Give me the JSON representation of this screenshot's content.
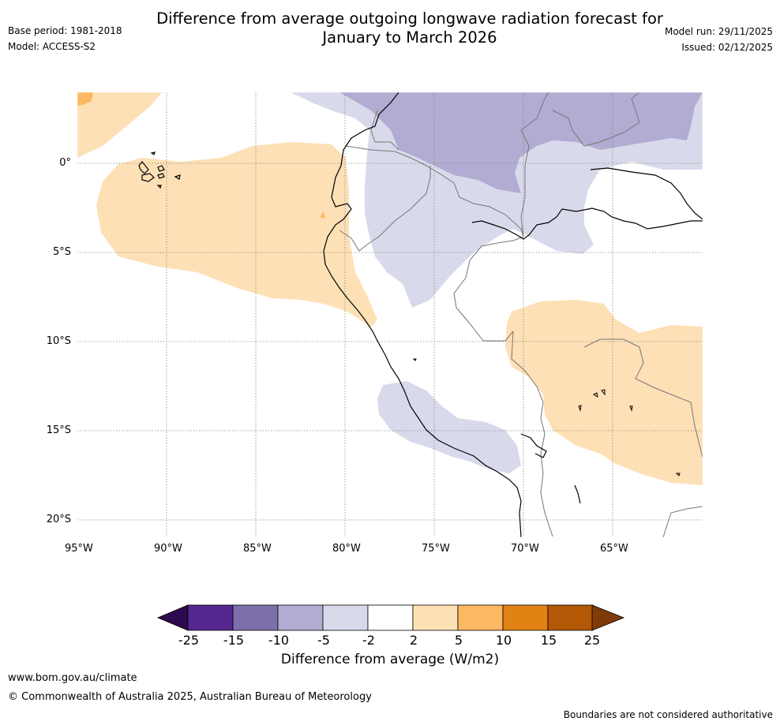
{
  "title_line1": "Difference from average outgoing longwave radiation forecast for",
  "title_line2": "January to March 2026",
  "base_period": "Base period: 1981-2018",
  "model": "Model: ACCESS-S2",
  "model_run": "Model run: 29/11/2025",
  "issued": "Issued: 02/12/2025",
  "lon_ticks": [
    "95°W",
    "90°W",
    "85°W",
    "80°W",
    "75°W",
    "70°W",
    "65°W"
  ],
  "lat_ticks": [
    "0°",
    "5°S",
    "10°S",
    "15°S",
    "20°S"
  ],
  "colorbar": {
    "labels": [
      "-25",
      "-15",
      "-10",
      "-5",
      "-2",
      "2",
      "5",
      "10",
      "15",
      "25"
    ],
    "colors": [
      "#2d0a4e",
      "#54278f",
      "#7d6fab",
      "#b2abd2",
      "#d8daeb",
      "#ffffff",
      "#fee0b6",
      "#fdb863",
      "#e08214",
      "#b35806",
      "#7f3b08"
    ],
    "title": "Difference from average (W/m2)"
  },
  "footer_url": "www.bom.gov.au/climate",
  "footer_copyright": "© Commonwealth of Australia 2025, Australian Bureau of Meteorology",
  "footer_disclaimer": "Boundaries are not considered authoritative"
}
